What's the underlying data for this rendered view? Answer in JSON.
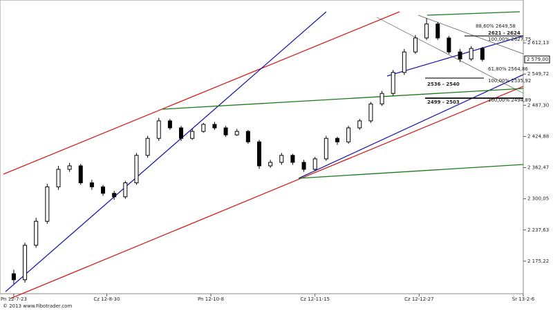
{
  "chart_data": {
    "type": "candlestick",
    "x": [
      0,
      3,
      6,
      9,
      12,
      15,
      18,
      21,
      24,
      27,
      30,
      33,
      36,
      39,
      42,
      45,
      48,
      51,
      54,
      57,
      60,
      63,
      66,
      69,
      72,
      75,
      78,
      81,
      84,
      87,
      90,
      93,
      96,
      99,
      102,
      105,
      108,
      111,
      114,
      117,
      120,
      123,
      126
    ],
    "open": [
      2150,
      2138,
      2207,
      2255,
      2324,
      2359,
      2366,
      2332,
      2324,
      2311,
      2304,
      2332,
      2387,
      2421,
      2456,
      2442,
      2421,
      2435,
      2449,
      2442,
      2428,
      2435,
      2414,
      2366,
      2373,
      2387,
      2373,
      2359,
      2380,
      2421,
      2414,
      2442,
      2456,
      2490,
      2511,
      2553,
      2594,
      2622,
      2650,
      2622,
      2594,
      2580,
      2601
    ],
    "high": [
      2158,
      2212,
      2262,
      2330,
      2366,
      2372,
      2370,
      2338,
      2328,
      2316,
      2336,
      2392,
      2426,
      2462,
      2460,
      2446,
      2440,
      2452,
      2454,
      2446,
      2440,
      2438,
      2418,
      2378,
      2392,
      2390,
      2378,
      2384,
      2426,
      2424,
      2446,
      2460,
      2494,
      2516,
      2558,
      2600,
      2628,
      2662,
      2654,
      2626,
      2600,
      2606,
      2604
    ],
    "low": [
      2130,
      2132,
      2202,
      2250,
      2318,
      2354,
      2328,
      2318,
      2306,
      2298,
      2300,
      2328,
      2382,
      2416,
      2438,
      2416,
      2418,
      2432,
      2438,
      2424,
      2426,
      2410,
      2360,
      2362,
      2368,
      2368,
      2354,
      2356,
      2376,
      2408,
      2410,
      2438,
      2452,
      2486,
      2506,
      2548,
      2590,
      2618,
      2618,
      2590,
      2574,
      2576,
      2575
    ],
    "close": [
      2138,
      2207,
      2255,
      2324,
      2359,
      2366,
      2332,
      2324,
      2311,
      2304,
      2332,
      2387,
      2421,
      2456,
      2442,
      2421,
      2435,
      2449,
      2442,
      2428,
      2435,
      2414,
      2366,
      2373,
      2387,
      2373,
      2359,
      2380,
      2421,
      2414,
      2442,
      2456,
      2490,
      2511,
      2553,
      2594,
      2622,
      2650,
      2622,
      2594,
      2580,
      2601,
      2579
    ],
    "last_price": {
      "value": 2579,
      "label": "2 579,00"
    },
    "xlim": [
      -3.7,
      137
    ],
    "ylim": [
      2110,
      2698
    ],
    "xticks": [
      {
        "value": 0,
        "label": "Pn 12-7-23"
      },
      {
        "value": 25,
        "label": "Cz 12-8-30"
      },
      {
        "value": 53,
        "label": "Pn 12-10-8"
      },
      {
        "value": 81,
        "label": "Cz 12-11-15"
      },
      {
        "value": 109,
        "label": "Cz 12-12-27"
      },
      {
        "value": 137,
        "label": "Śr 13-2-6"
      }
    ],
    "yticks": [
      {
        "value": 2612.13,
        "label": "2 612,13"
      },
      {
        "value": 2549.72,
        "label": "2 549,72"
      },
      {
        "value": 2487.3,
        "label": "2 487,30"
      },
      {
        "value": 2424.88,
        "label": "2 424,88"
      },
      {
        "value": 2362.47,
        "label": "2 362,47"
      },
      {
        "value": 2300.05,
        "label": "2 300,05"
      },
      {
        "value": 2237.63,
        "label": "2 237,63"
      },
      {
        "value": 2175.22,
        "label": "2 175,22"
      }
    ],
    "annotations": [
      "88,60% 2649,58",
      "2621 - 2624",
      "100,00% 2627,75",
      "61,80% 2564,86",
      "100,00% 2535,92",
      "2536 - 2540",
      "2499 - 2503",
      "100,00% 2494,89"
    ],
    "copyright": "© 2013 www.Fibotrader.com"
  }
}
